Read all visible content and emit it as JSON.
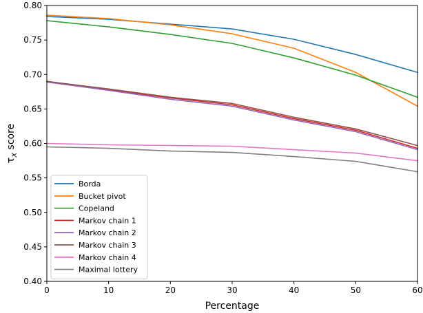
{
  "chart_data": {
    "type": "line",
    "title": "",
    "xlabel": "Percentage",
    "ylabel": "τ_X score",
    "x": [
      0,
      10,
      20,
      30,
      40,
      50,
      60
    ],
    "xlim": [
      0,
      60
    ],
    "ylim": [
      0.4,
      0.8
    ],
    "xticks": [
      "0",
      "10",
      "20",
      "30",
      "40",
      "50",
      "60"
    ],
    "yticks": [
      "0.40",
      "0.45",
      "0.50",
      "0.55",
      "0.60",
      "0.65",
      "0.70",
      "0.75",
      "0.80"
    ],
    "grid": false,
    "legend_position": "lower-left",
    "series": [
      {
        "name": "Borda",
        "color": "#1f77b4",
        "values": [
          0.784,
          0.78,
          0.773,
          0.766,
          0.751,
          0.729,
          0.703
        ]
      },
      {
        "name": "Bucket pivot",
        "color": "#ff7f0e",
        "values": [
          0.786,
          0.781,
          0.772,
          0.759,
          0.738,
          0.703,
          0.654
        ]
      },
      {
        "name": "Copeland",
        "color": "#2ca02c",
        "values": [
          0.778,
          0.769,
          0.758,
          0.745,
          0.724,
          0.699,
          0.667
        ]
      },
      {
        "name": "Markov chain 1",
        "color": "#d62728",
        "values": [
          0.69,
          0.678,
          0.666,
          0.656,
          0.636,
          0.619,
          0.593
        ]
      },
      {
        "name": "Markov chain 2",
        "color": "#9467bd",
        "values": [
          0.689,
          0.677,
          0.664,
          0.654,
          0.634,
          0.617,
          0.591
        ]
      },
      {
        "name": "Markov chain 3",
        "color": "#8c564b",
        "values": [
          0.69,
          0.679,
          0.667,
          0.658,
          0.638,
          0.621,
          0.597
        ]
      },
      {
        "name": "Markov chain 4",
        "color": "#e377c2",
        "values": [
          0.6,
          0.598,
          0.597,
          0.596,
          0.591,
          0.586,
          0.575
        ]
      },
      {
        "name": "Maximal lottery",
        "color": "#7f7f7f",
        "values": [
          0.595,
          0.593,
          0.589,
          0.587,
          0.581,
          0.574,
          0.559
        ]
      }
    ]
  }
}
